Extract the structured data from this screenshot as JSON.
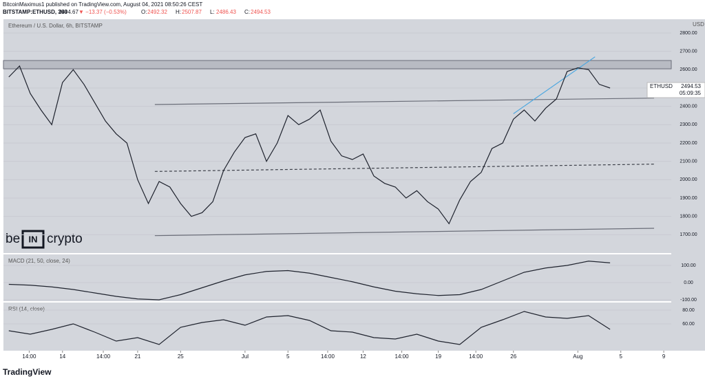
{
  "header": {
    "line1": "BitcoinMaximus1 published on TradingView.com, August 04, 2021 08:50:26 CEST",
    "symbol": "BITSTAMP:ETHUSD, 360",
    "last": "2494.67",
    "change": "▼ −13.37 (−0.53%)",
    "ohlc": [
      {
        "key": "O:",
        "value": "2492.32"
      },
      {
        "key": "H:",
        "value": "2507.87"
      },
      {
        "key": "L:",
        "value": "2486.43"
      },
      {
        "key": "C:",
        "value": "2494.53"
      }
    ]
  },
  "chart_data": [
    {
      "type": "line",
      "title": "Ethereum / U.S. Dollar, 6h, BITSTAMP",
      "y_unit": "USD",
      "x": [
        -22,
        -21,
        -20,
        -19,
        -18,
        -17,
        -16,
        -15,
        -14,
        -13,
        -12,
        -11,
        -10,
        -9,
        -8,
        -7,
        -6,
        -5,
        -4,
        -3,
        -2,
        -1,
        0,
        1,
        2,
        3,
        4,
        5,
        6,
        7,
        8,
        9,
        10,
        11,
        12,
        13,
        14,
        15,
        16,
        17,
        18,
        19,
        20,
        21,
        22,
        23,
        24,
        25,
        26,
        27,
        28,
        29,
        30,
        31,
        32,
        33,
        34
      ],
      "series": [
        {
          "name": "ETHUSD",
          "color": "#1e222d",
          "values": [
            2560,
            2620,
            2470,
            2380,
            2300,
            2530,
            2600,
            2520,
            2420,
            2320,
            2250,
            2200,
            2000,
            1870,
            1990,
            1960,
            1870,
            1800,
            1820,
            1880,
            2050,
            2150,
            2230,
            2250,
            2100,
            2200,
            2350,
            2300,
            2330,
            2380,
            2210,
            2130,
            2110,
            2140,
            2020,
            1980,
            1960,
            1900,
            1940,
            1880,
            1840,
            1760,
            1890,
            1990,
            2040,
            2170,
            2200,
            2330,
            2380,
            2320,
            2390,
            2440,
            2590,
            2610,
            2600,
            2520,
            2500
          ]
        }
      ],
      "price_label": {
        "price": "2494.53",
        "countdown": "05:09:35"
      },
      "zones": [
        {
          "ylim": [
            2605,
            2650
          ]
        }
      ],
      "trendlines": [
        {
          "x": [
            -8.4,
            38.1
          ],
          "y": [
            2410,
            2445
          ],
          "style": "solid",
          "color": "#6a6d78"
        },
        {
          "x": [
            -8.4,
            38.1
          ],
          "y": [
            2045,
            2085
          ],
          "style": "dashed",
          "color": "#3c3f48"
        },
        {
          "x": [
            -8.4,
            38.1
          ],
          "y": [
            1695,
            1735
          ],
          "style": "solid",
          "color": "#6a6d78"
        },
        {
          "x": [
            25,
            32.6
          ],
          "y": [
            2360,
            2670
          ],
          "style": "solid",
          "color": "#4fa8e0"
        }
      ],
      "xlim": [
        -22.5,
        39.7
      ],
      "ylim": [
        1600,
        2875
      ],
      "yticks": [
        {
          "value": 1700,
          "label": "1700.00"
        },
        {
          "value": 1800,
          "label": "1800.00"
        },
        {
          "value": 1900,
          "label": "1900.00"
        },
        {
          "value": 2000,
          "label": "2000.00"
        },
        {
          "value": 2100,
          "label": "2100.00"
        },
        {
          "value": 2200,
          "label": "2200.00"
        },
        {
          "value": 2300,
          "label": "2300.00"
        },
        {
          "value": 2400,
          "label": "2400.00"
        },
        {
          "value": 2500,
          "label": "2500.00"
        },
        {
          "value": 2600,
          "label": "2600.00"
        },
        {
          "value": 2700,
          "label": "2700.00"
        },
        {
          "value": 2800,
          "label": "2800.00"
        }
      ],
      "xticks": [
        {
          "value": -20.1,
          "label": "14:00"
        },
        {
          "value": -17,
          "label": "14"
        },
        {
          "value": -13.2,
          "label": "14:00"
        },
        {
          "value": -10,
          "label": "21"
        },
        {
          "value": -6,
          "label": "25"
        },
        {
          "value": 0,
          "label": "Jul"
        },
        {
          "value": 4,
          "label": "5"
        },
        {
          "value": 7.7,
          "label": "14:00"
        },
        {
          "value": 11,
          "label": "12"
        },
        {
          "value": 14.6,
          "label": "14:00"
        },
        {
          "value": 18,
          "label": "19"
        },
        {
          "value": 21.5,
          "label": "14:00"
        },
        {
          "value": 25,
          "label": "26"
        },
        {
          "value": 31,
          "label": "Aug"
        },
        {
          "value": 35,
          "label": "5"
        },
        {
          "value": 39,
          "label": "9"
        }
      ]
    },
    {
      "type": "line",
      "title": "MACD (21, 50, close, 24)",
      "x": [
        -22,
        -20,
        -18,
        -16,
        -14,
        -12,
        -10,
        -8,
        -6,
        -4,
        -2,
        0,
        2,
        4,
        6,
        8,
        10,
        12,
        14,
        16,
        18,
        20,
        22,
        24,
        26,
        28,
        30,
        32,
        34
      ],
      "series": [
        {
          "name": "MACD",
          "color": "#1e222d",
          "values": [
            -10,
            -15,
            -25,
            -40,
            -60,
            -80,
            -95,
            -100,
            -70,
            -30,
            10,
            45,
            65,
            70,
            55,
            30,
            5,
            -25,
            -50,
            -65,
            -75,
            -70,
            -40,
            10,
            60,
            85,
            100,
            125,
            115
          ]
        }
      ],
      "xlim": [
        -22.5,
        39.7
      ],
      "ylim": [
        -108,
        164
      ],
      "yticks": [
        {
          "value": 100,
          "label": "100.00"
        },
        {
          "value": 0,
          "label": "0.00"
        },
        {
          "value": -100,
          "label": "-100.00"
        }
      ]
    },
    {
      "type": "line",
      "title": "RSI (14, close)",
      "x": [
        -22,
        -20,
        -18,
        -16,
        -14,
        -12,
        -10,
        -8,
        -6,
        -4,
        -2,
        0,
        2,
        4,
        6,
        8,
        10,
        12,
        14,
        16,
        18,
        20,
        22,
        24,
        26,
        28,
        30,
        32,
        34
      ],
      "series": [
        {
          "name": "RSI",
          "color": "#1e222d",
          "values": [
            50,
            45,
            52,
            60,
            48,
            35,
            40,
            30,
            55,
            62,
            66,
            58,
            70,
            72,
            65,
            50,
            48,
            40,
            38,
            45,
            35,
            30,
            55,
            66,
            78,
            70,
            68,
            72,
            52
          ]
        }
      ],
      "xlim": [
        -22.5,
        39.7
      ],
      "ylim": [
        21,
        91
      ],
      "yticks": [
        {
          "value": 80,
          "label": "80.00"
        },
        {
          "value": 60,
          "label": "60.00"
        }
      ]
    }
  ],
  "logo": {
    "parts": [
      "be",
      "IN",
      "crypto"
    ]
  },
  "footer": "TradingView"
}
